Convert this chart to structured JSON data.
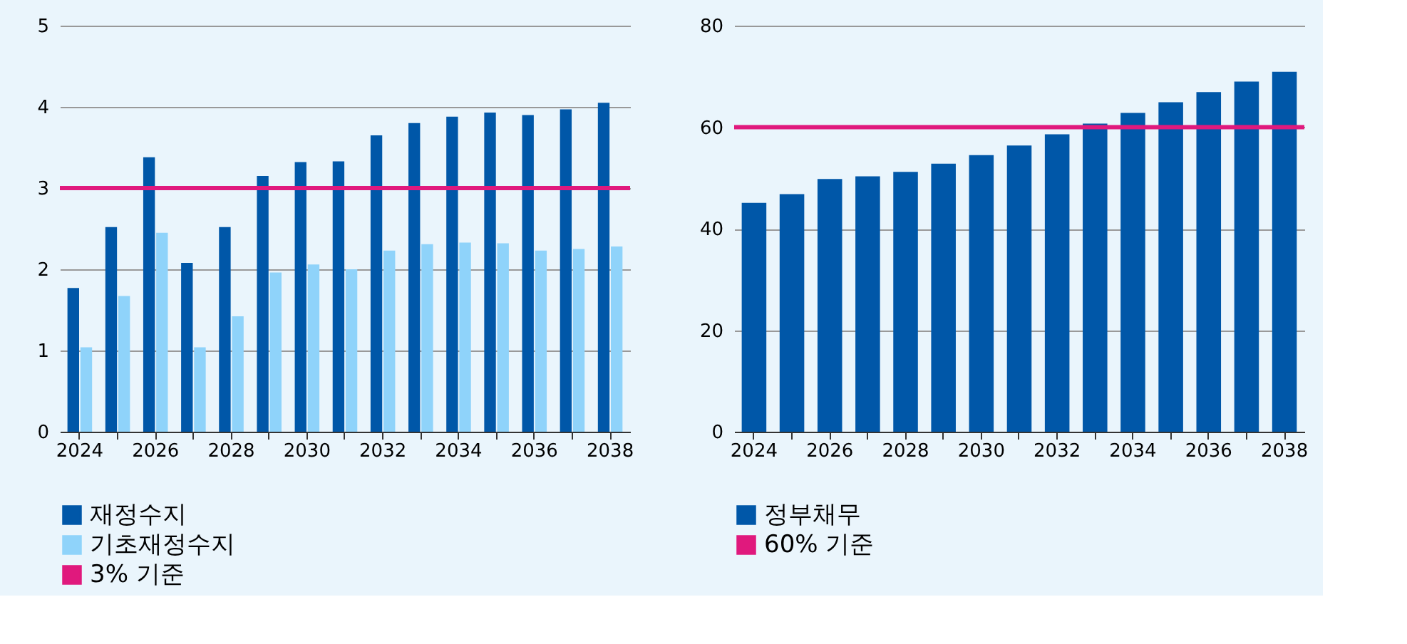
{
  "chart_data": [
    {
      "type": "bar",
      "categories": [
        "2024",
        null,
        "2026",
        null,
        "2028",
        null,
        "2030",
        null,
        "2032",
        null,
        "2034",
        null,
        "2036",
        null,
        "2038"
      ],
      "series": [
        {
          "name": "재정수지",
          "color": "#0057a8",
          "values": [
            1.77,
            2.52,
            3.38,
            2.08,
            2.52,
            3.15,
            3.32,
            3.33,
            3.65,
            3.8,
            3.88,
            3.93,
            3.9,
            3.97,
            4.05
          ]
        },
        {
          "name": "기초재정수지",
          "color": "#8fd3fa",
          "values": [
            1.04,
            1.67,
            2.45,
            1.04,
            1.42,
            1.96,
            2.06,
            2.0,
            2.23,
            2.31,
            2.33,
            2.32,
            2.23,
            2.25,
            2.28
          ]
        }
      ],
      "ylim": [
        0,
        5
      ],
      "yticks": [
        0,
        1,
        2,
        3,
        4,
        5
      ],
      "grid": "y",
      "legend": "bottom left",
      "ref_lines": [
        {
          "axis": "y",
          "value": 3,
          "label": "3% 기준",
          "color": "#e0197d"
        }
      ]
    },
    {
      "type": "bar",
      "categories": [
        "2024",
        null,
        "2026",
        null,
        "2028",
        null,
        "2030",
        null,
        "2032",
        null,
        "2034",
        null,
        "2036",
        null,
        "2038"
      ],
      "series": [
        {
          "name": "정부채무",
          "color": "#0057a8",
          "values": [
            45.1,
            46.8,
            49.8,
            50.3,
            51.2,
            52.8,
            54.5,
            56.4,
            58.6,
            60.7,
            62.8,
            64.9,
            66.9,
            69.0,
            70.9
          ]
        }
      ],
      "ylim": [
        0,
        80
      ],
      "yticks": [
        0,
        20,
        40,
        60,
        80
      ],
      "grid": "y",
      "legend": "bottom left",
      "ref_lines": [
        {
          "axis": "y",
          "value": 60,
          "label": "60% 기준",
          "color": "#e0197d"
        }
      ]
    }
  ]
}
